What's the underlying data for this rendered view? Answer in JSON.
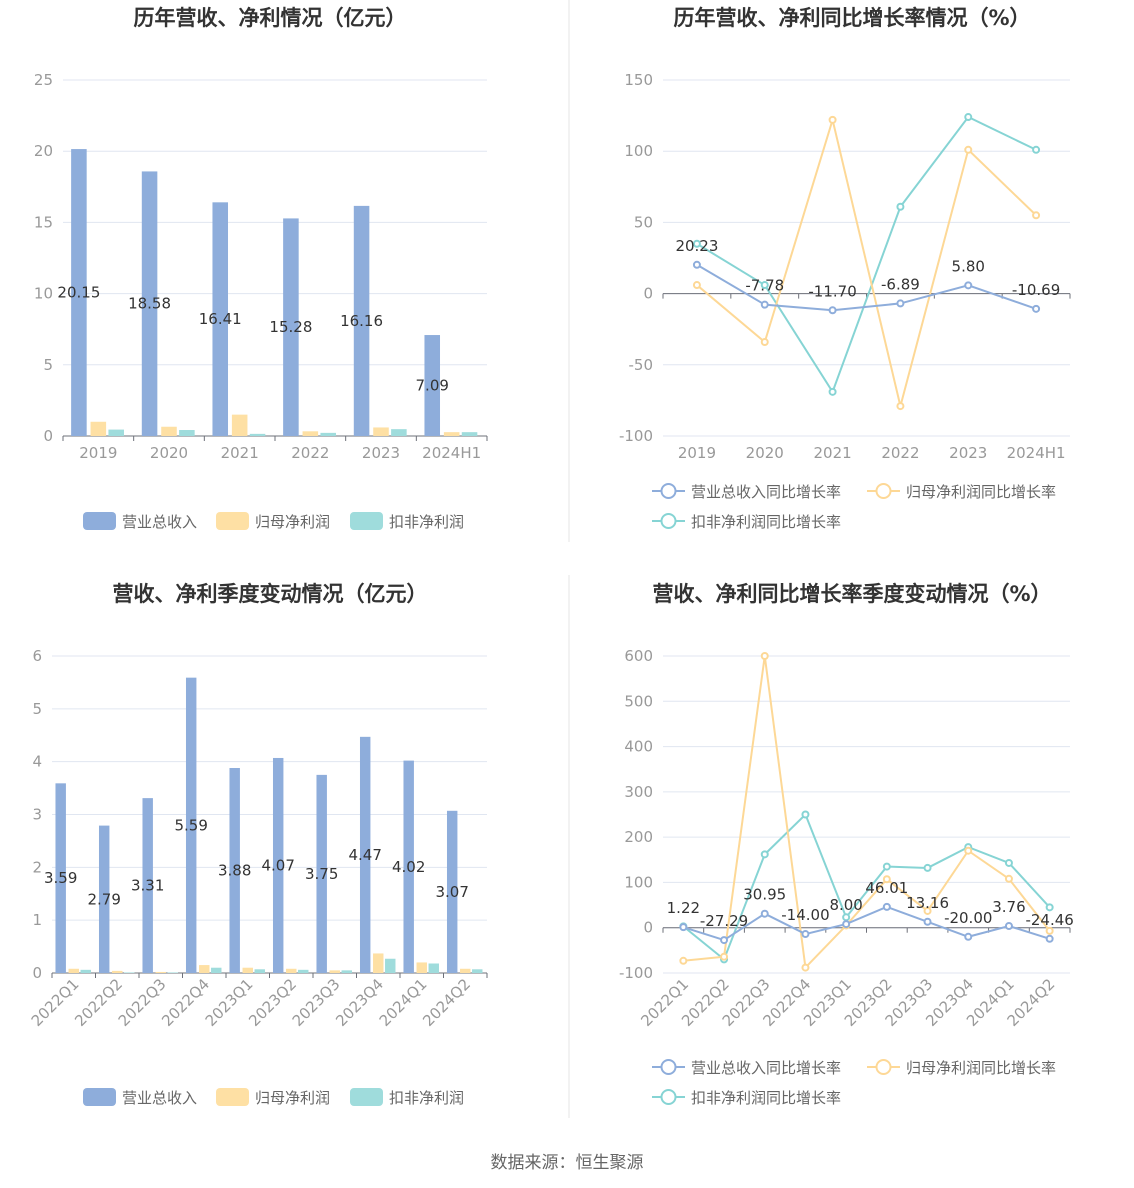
{
  "source_label": "数据来源：恒生聚源",
  "colors": {
    "revenue": "#8eaddb",
    "net_profit": "#fee0a4",
    "deducted_profit": "#9fdcdc",
    "line_revenue": "#8eaddb",
    "line_net": "#fdd896",
    "line_deducted": "#86d4d4"
  },
  "chart_data": [
    {
      "type": "bar",
      "title": "历年营收、净利情况（亿元）",
      "categories": [
        "2019",
        "2020",
        "2021",
        "2022",
        "2023",
        "2024H1"
      ],
      "ylim": [
        0,
        25
      ],
      "yticks": [
        0,
        5,
        10,
        15,
        20,
        25
      ],
      "series": [
        {
          "name": "营业总收入",
          "values": [
            20.15,
            18.58,
            16.41,
            15.28,
            16.16,
            7.09
          ],
          "labeled": true
        },
        {
          "name": "归母净利润",
          "values": [
            1.0,
            0.65,
            1.5,
            0.33,
            0.6,
            0.27
          ]
        },
        {
          "name": "扣非净利润",
          "values": [
            0.45,
            0.42,
            0.15,
            0.22,
            0.48,
            0.27
          ]
        }
      ],
      "legend": "bottom"
    },
    {
      "type": "line",
      "title": "历年营收、净利同比增长率情况（%）",
      "categories": [
        "2019",
        "2020",
        "2021",
        "2022",
        "2023",
        "2024H1"
      ],
      "ylim": [
        -100,
        150
      ],
      "yticks": [
        -100,
        -50,
        0,
        50,
        100,
        150
      ],
      "series": [
        {
          "name": "营业总收入同比增长率",
          "values": [
            20.23,
            -7.78,
            -11.7,
            -6.89,
            5.8,
            -10.69
          ],
          "labeled": true
        },
        {
          "name": "归母净利润同比增长率",
          "values": [
            6,
            -34,
            122,
            -79,
            101,
            55
          ]
        },
        {
          "name": "扣非净利润同比增长率",
          "values": [
            35,
            6,
            -69,
            61,
            124,
            101
          ]
        }
      ],
      "legend": "bottom"
    },
    {
      "type": "bar",
      "title": "营收、净利季度变动情况（亿元）",
      "categories": [
        "2022Q1",
        "2022Q2",
        "2022Q3",
        "2022Q4",
        "2023Q1",
        "2023Q2",
        "2023Q3",
        "2023Q4",
        "2024Q1",
        "2024Q2"
      ],
      "ylim": [
        0,
        6
      ],
      "yticks": [
        0,
        1,
        2,
        3,
        4,
        5,
        6
      ],
      "series": [
        {
          "name": "营业总收入",
          "values": [
            3.59,
            2.79,
            3.31,
            5.59,
            3.88,
            4.07,
            3.75,
            4.47,
            4.02,
            3.07
          ],
          "labeled": true
        },
        {
          "name": "归母净利润",
          "values": [
            0.08,
            0.04,
            0.02,
            0.15,
            0.1,
            0.08,
            0.05,
            0.37,
            0.2,
            0.08
          ]
        },
        {
          "name": "扣非净利润",
          "values": [
            0.06,
            0.01,
            0.01,
            0.1,
            0.07,
            0.06,
            0.05,
            0.27,
            0.18,
            0.07
          ]
        }
      ],
      "legend": "bottom"
    },
    {
      "type": "line",
      "title": "营收、净利同比增长率季度变动情况（%）",
      "categories": [
        "2022Q1",
        "2022Q2",
        "2022Q3",
        "2022Q4",
        "2023Q1",
        "2023Q2",
        "2023Q3",
        "2023Q4",
        "2024Q1",
        "2024Q2"
      ],
      "ylim": [
        -100,
        600
      ],
      "yticks": [
        -100,
        0,
        100,
        200,
        300,
        400,
        500,
        600
      ],
      "series": [
        {
          "name": "营业总收入同比增长率",
          "values": [
            1.22,
            -27.29,
            30.95,
            -14.0,
            8.0,
            46.01,
            13.16,
            -20.0,
            3.76,
            -24.46
          ],
          "labeled": true
        },
        {
          "name": "归母净利润同比增长率",
          "values": [
            -73,
            -64,
            600,
            -88,
            5,
            107,
            37,
            170,
            108,
            -7
          ]
        },
        {
          "name": "扣非净利润同比增长率",
          "values": [
            3,
            -70,
            162,
            250,
            23,
            135,
            132,
            178,
            143,
            45
          ]
        }
      ],
      "legend": "bottom"
    }
  ]
}
